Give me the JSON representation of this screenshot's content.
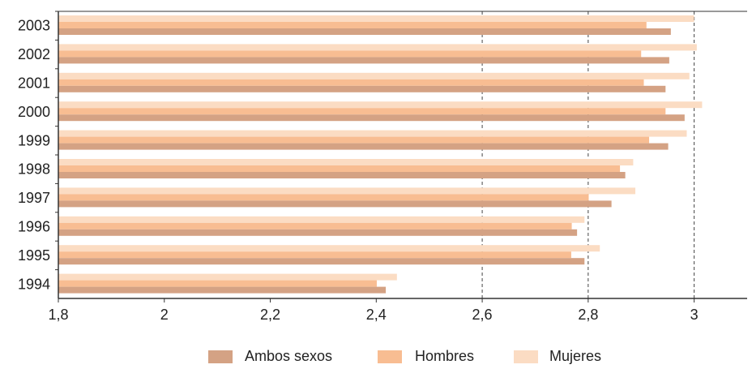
{
  "chart_data": {
    "type": "bar",
    "orientation": "horizontal",
    "categories": [
      "1994",
      "1995",
      "1996",
      "1997",
      "1998",
      "1999",
      "2000",
      "2001",
      "2002",
      "2003"
    ],
    "series": [
      {
        "name": "Ambos sexos",
        "color": "#d4a284",
        "values": [
          2.418,
          2.793,
          2.779,
          2.844,
          2.87,
          2.951,
          2.982,
          2.946,
          2.953,
          2.956
        ]
      },
      {
        "name": "Hombres",
        "color": "#f8bd92",
        "values": [
          2.401,
          2.768,
          2.769,
          2.801,
          2.86,
          2.915,
          2.946,
          2.905,
          2.9,
          2.91
        ]
      },
      {
        "name": "Mujeres",
        "color": "#fbdcc3",
        "values": [
          2.439,
          2.822,
          2.793,
          2.889,
          2.885,
          2.986,
          3.015,
          2.991,
          3.005,
          3.0
        ]
      }
    ],
    "xlim": [
      1.8,
      3.1
    ],
    "x_ticks": [
      "1,8",
      "2",
      "2,2",
      "2,4",
      "2,6",
      "2,8",
      "3"
    ],
    "x_tick_values": [
      1.8,
      2.0,
      2.2,
      2.4,
      2.6,
      2.8,
      3.0
    ],
    "title": "",
    "xlabel": "",
    "ylabel": "",
    "grid": "vertical dashed lines at 2.6, 2.8 and 3",
    "legend_position": "bottom"
  }
}
